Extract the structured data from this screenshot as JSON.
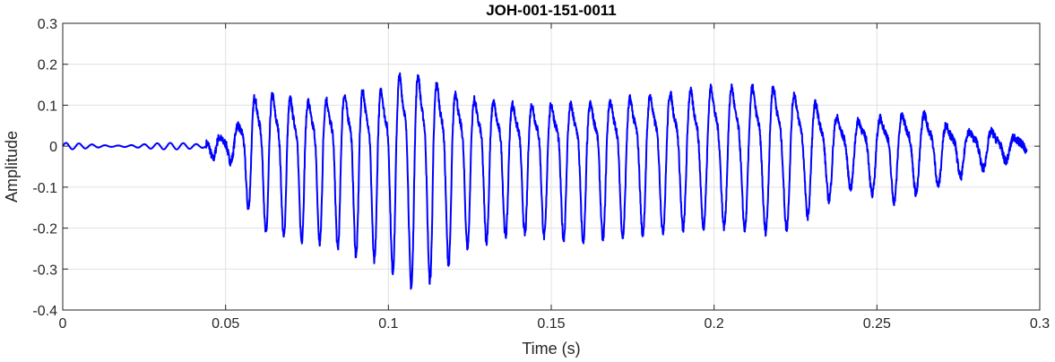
{
  "chart_data": {
    "type": "line",
    "title": "JOH-001-151-0011",
    "xlabel": "Time (s)",
    "ylabel": "Amplitude",
    "xlim": [
      0,
      0.3
    ],
    "ylim": [
      -0.4,
      0.3
    ],
    "x_ticks": [
      0,
      0.05,
      0.1,
      0.15,
      0.2,
      0.25,
      0.3
    ],
    "x_tick_labels": [
      "0",
      "0.05",
      "0.1",
      "0.15",
      "0.2",
      "0.25",
      "0.3"
    ],
    "y_ticks": [
      0.3,
      0.2,
      0.1,
      0,
      -0.1,
      -0.2,
      -0.3,
      -0.4
    ],
    "y_tick_labels": [
      "0.3",
      "0.2",
      "0.1",
      "0",
      "-0.1",
      "-0.2",
      "-0.3",
      "-0.4"
    ],
    "grid": true,
    "series": [
      {
        "color": "#0000ff",
        "signal": {
          "x_end": 0.296,
          "pre_onset_amplitude": 0.008,
          "onset_time": 0.044,
          "envelope": [
            {
              "x": 0.0,
              "pos": 0.008,
              "neg": -0.007
            },
            {
              "x": 0.043,
              "pos": 0.005,
              "neg": -0.004
            },
            {
              "x": 0.045,
              "pos": 0.03,
              "neg": -0.03
            },
            {
              "x": 0.052,
              "pos": 0.03,
              "neg": -0.04
            },
            {
              "x": 0.057,
              "pos": 0.16,
              "neg": -0.16
            },
            {
              "x": 0.062,
              "pos": 0.18,
              "neg": -0.22
            },
            {
              "x": 0.074,
              "pos": 0.15,
              "neg": -0.24
            },
            {
              "x": 0.082,
              "pos": 0.16,
              "neg": -0.25
            },
            {
              "x": 0.091,
              "pos": 0.19,
              "neg": -0.28
            },
            {
              "x": 0.1,
              "pos": 0.19,
              "neg": -0.3
            },
            {
              "x": 0.105,
              "pos": 0.26,
              "neg": -0.36
            },
            {
              "x": 0.113,
              "pos": 0.22,
              "neg": -0.34
            },
            {
              "x": 0.125,
              "pos": 0.16,
              "neg": -0.25
            },
            {
              "x": 0.14,
              "pos": 0.14,
              "neg": -0.22
            },
            {
              "x": 0.16,
              "pos": 0.14,
              "neg": -0.24
            },
            {
              "x": 0.18,
              "pos": 0.17,
              "neg": -0.22
            },
            {
              "x": 0.2,
              "pos": 0.2,
              "neg": -0.2
            },
            {
              "x": 0.22,
              "pos": 0.2,
              "neg": -0.22
            },
            {
              "x": 0.232,
              "pos": 0.14,
              "neg": -0.16
            },
            {
              "x": 0.24,
              "pos": 0.08,
              "neg": -0.1
            },
            {
              "x": 0.255,
              "pos": 0.1,
              "neg": -0.14
            },
            {
              "x": 0.265,
              "pos": 0.11,
              "neg": -0.11
            },
            {
              "x": 0.275,
              "pos": 0.05,
              "neg": -0.08
            },
            {
              "x": 0.285,
              "pos": 0.05,
              "neg": -0.05
            },
            {
              "x": 0.296,
              "pos": 0.02,
              "neg": -0.02
            }
          ]
        }
      }
    ]
  }
}
